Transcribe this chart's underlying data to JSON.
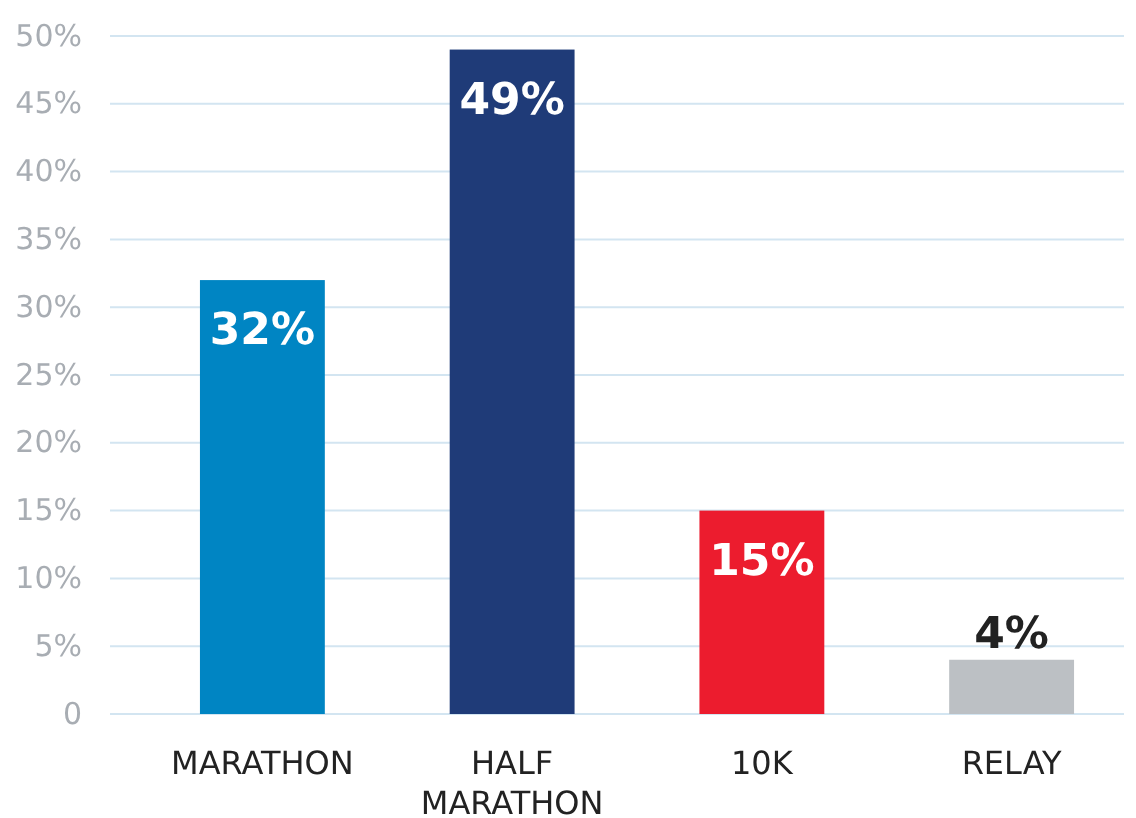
{
  "chart_data": {
    "type": "bar",
    "categories": [
      "MARATHON",
      "HALF MARATHON",
      "10K",
      "RELAY"
    ],
    "values": [
      32,
      49,
      15,
      4
    ],
    "colors": [
      "#0085c3",
      "#1f3b78",
      "#ec1c2e",
      "#bcc0c4"
    ],
    "value_labels": [
      "32%",
      "49%",
      "15%",
      "4%"
    ],
    "ylim": [
      0,
      50
    ],
    "yticks": [
      {
        "value": 0,
        "label": "0"
      },
      {
        "value": 5,
        "label": "5%"
      },
      {
        "value": 10,
        "label": "10%"
      },
      {
        "value": 15,
        "label": "15%"
      },
      {
        "value": 20,
        "label": "20%"
      },
      {
        "value": 25,
        "label": "25%"
      },
      {
        "value": 30,
        "label": "30%"
      },
      {
        "value": 35,
        "label": "35%"
      },
      {
        "value": 40,
        "label": "40%"
      },
      {
        "value": 45,
        "label": "45%"
      },
      {
        "value": 50,
        "label": "50%"
      }
    ],
    "grid": "y"
  }
}
